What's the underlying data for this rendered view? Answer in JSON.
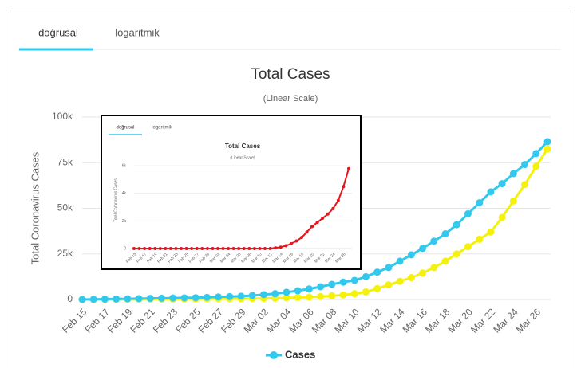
{
  "chart_data": [
    {
      "type": "line",
      "tabs": [
        "doğrusal",
        "logaritmik"
      ],
      "title": "Total Cases",
      "subtitle": "(Linear Scale)",
      "y_label": "Total Coronavirus Cases",
      "categories": [
        "Feb 15",
        null,
        "Feb 17",
        null,
        "Feb 19",
        null,
        "Feb 21",
        null,
        "Feb 23",
        null,
        "Feb 25",
        null,
        "Feb 27",
        null,
        "Feb 29",
        null,
        "Mar 02",
        null,
        "Mar 04",
        null,
        "Mar 06",
        null,
        "Mar 08",
        null,
        "Mar 10",
        null,
        "Mar 12",
        null,
        "Mar 14",
        null,
        "Mar 16",
        null,
        "Mar 18",
        null,
        "Mar 20",
        null,
        "Mar 22",
        null,
        "Mar 24",
        null,
        "Mar 26",
        null
      ],
      "series": [
        {
          "name": "Cases",
          "color": "#33c9ee",
          "values": [
            0,
            100,
            200,
            300,
            400,
            500,
            600,
            700,
            800,
            900,
            1000,
            1200,
            1400,
            1600,
            1800,
            2200,
            2700,
            3200,
            4000,
            4800,
            5800,
            7000,
            8300,
            9500,
            10500,
            12500,
            15000,
            17500,
            21000,
            24500,
            28000,
            32000,
            36000,
            41000,
            47000,
            53000,
            59000,
            63500,
            69000,
            74000,
            80000,
            86500
          ]
        },
        {
          "color": "#f4f20c",
          "values": [
            0,
            0,
            50,
            100,
            100,
            150,
            200,
            200,
            250,
            300,
            300,
            350,
            400,
            400,
            450,
            500,
            600,
            700,
            900,
            1100,
            1300,
            1600,
            2000,
            2500,
            3200,
            4200,
            6000,
            8000,
            10000,
            12000,
            14500,
            17500,
            21000,
            25000,
            29000,
            33000,
            37000,
            45000,
            54000,
            63000,
            73000,
            82500
          ]
        }
      ],
      "ylim": [
        0,
        100000
      ],
      "yticks": [
        0,
        {
          "value": 25000,
          "label": "25k"
        },
        {
          "value": 50000,
          "label": "50k"
        },
        {
          "value": 75000,
          "label": "75k"
        },
        {
          "value": 100000,
          "label": "100k"
        }
      ],
      "grid": true,
      "legend": "bottom"
    },
    {
      "type": "line",
      "tabs": [
        "doğrusal",
        "logaritmik"
      ],
      "title": "Total Cases",
      "subtitle": "(Linear Scale)",
      "y_label": "Total Coronavirus Cases",
      "categories": [
        "Feb 15",
        null,
        "Feb 17",
        null,
        "Feb 19",
        null,
        "Feb 21",
        null,
        "Feb 23",
        null,
        "Feb 25",
        null,
        "Feb 27",
        null,
        "Feb 29",
        null,
        "Mar 02",
        null,
        "Mar 04",
        null,
        "Mar 06",
        null,
        "Mar 08",
        null,
        "Mar 10",
        null,
        "Mar 12",
        null,
        "Mar 14",
        null,
        "Mar 16",
        null,
        "Mar 18",
        null,
        "Mar 20",
        null,
        "Mar 22",
        null,
        "Mar 24",
        null,
        "Mar 26",
        null
      ],
      "series": [
        {
          "color": "#e8141c",
          "values": [
            0,
            0,
            0,
            0,
            0,
            0,
            0,
            0,
            0,
            0,
            0,
            0,
            0,
            0,
            0,
            0,
            0,
            0,
            0,
            0,
            0,
            0,
            0,
            0,
            0,
            0,
            0,
            50,
            100,
            200,
            350,
            550,
            800,
            1200,
            1600,
            1900,
            2200,
            2500,
            2900,
            3500,
            4500,
            5800
          ]
        }
      ],
      "ylim": [
        0,
        7000
      ],
      "yticks": [
        0,
        {
          "value": 2000,
          "label": "2k"
        },
        {
          "value": 4000,
          "label": "4k"
        },
        {
          "value": 6000,
          "label": "6k"
        }
      ],
      "grid": true
    }
  ]
}
